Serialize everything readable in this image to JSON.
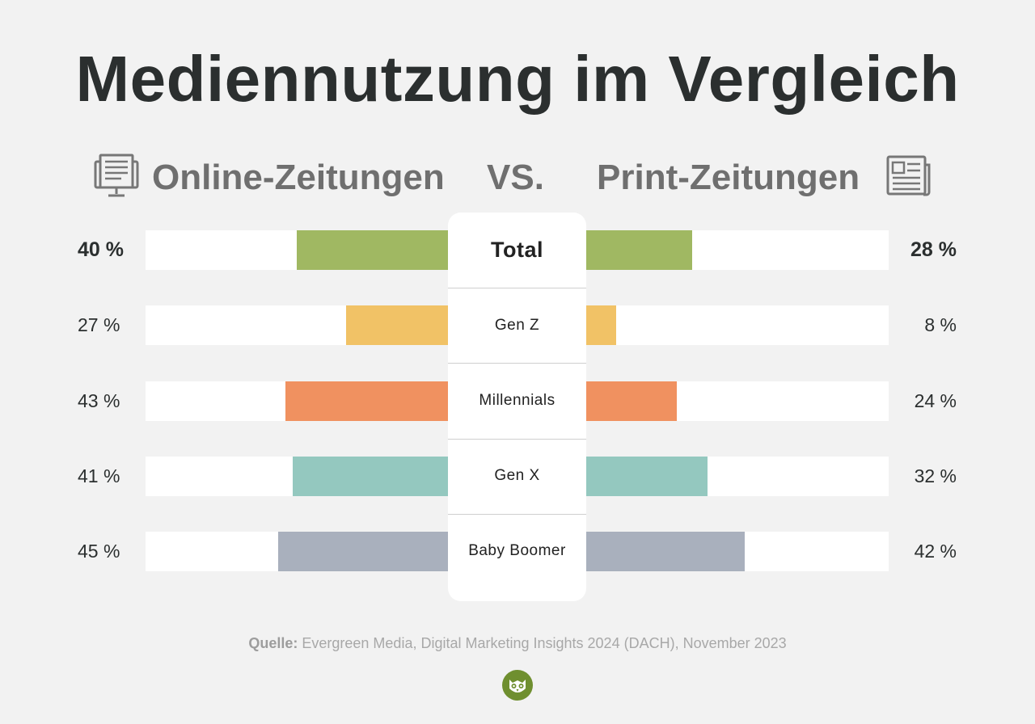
{
  "title": "Mediennutzung im Vergleich",
  "left_heading": "Online-Zeitungen",
  "vs_label": "VS.",
  "right_heading": "Print-Zeitungen",
  "source_label": "Quelle:",
  "source_text": "Evergreen Media, Digital Marketing Insights 2024 (DACH), November 2023",
  "icons": {
    "left": "monitor-newspaper-icon",
    "right": "newspaper-icon",
    "footer": "owl-logo-icon"
  },
  "chart_data": {
    "type": "bar",
    "layout": "butterfly",
    "categories": [
      "Total",
      "Gen Z",
      "Millennials",
      "Gen X",
      "Baby Boomer"
    ],
    "series": [
      {
        "name": "Online-Zeitungen",
        "side": "left",
        "values": [
          40,
          27,
          43,
          41,
          45
        ],
        "labels": [
          "40 %",
          "27 %",
          "43 %",
          "41 %",
          "45 %"
        ]
      },
      {
        "name": "Print-Zeitungen",
        "side": "right",
        "values": [
          28,
          8,
          24,
          32,
          42
        ],
        "labels": [
          "28 %",
          "8 %",
          "24 %",
          "32 %",
          "42 %"
        ]
      }
    ],
    "colors": [
      "#a0b862",
      "#f1c266",
      "#f09160",
      "#94c8bf",
      "#a9b0bd"
    ],
    "xlim": [
      0,
      100
    ],
    "unit": "%"
  }
}
